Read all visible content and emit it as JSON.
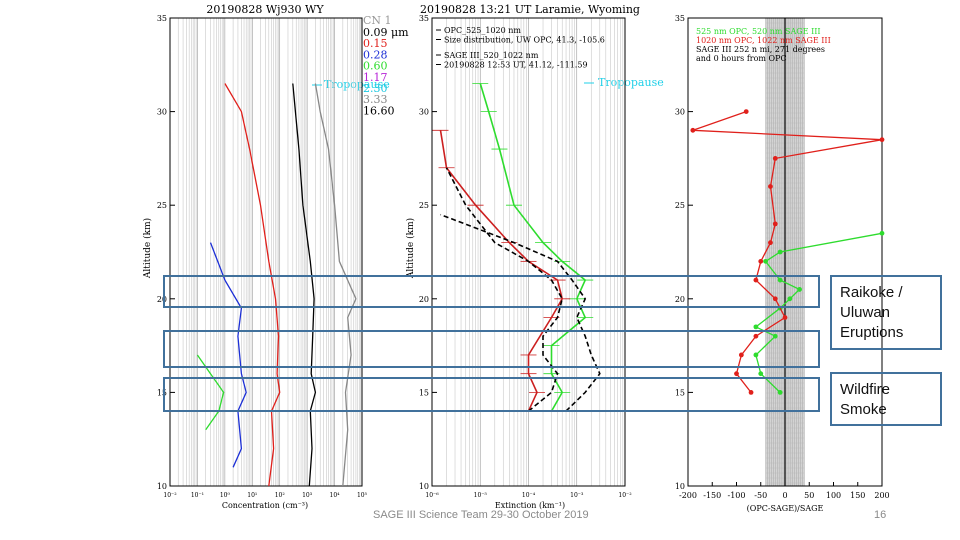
{
  "slide": {
    "footer": "SAGE III Science Team 29-30 October 2019",
    "page_number": "16",
    "box_color": "#41719c",
    "annotations": [
      {
        "text_lines": [
          "Raikoke /",
          "Uluwan",
          "Eruptions"
        ]
      },
      {
        "text_lines": [
          "Wildfire",
          "Smoke"
        ]
      }
    ]
  },
  "chart_data": [
    {
      "type": "line",
      "title": "20190828 Wj930 WY",
      "xlabel": "Concentration (cm⁻³)",
      "ylabel": "Altitude (km)",
      "xscale": "log",
      "xlim": [
        0.01,
        100000
      ],
      "ylim": [
        10,
        35
      ],
      "x_ticks": [
        "10⁻²",
        "10⁻¹",
        "10⁰",
        "10¹",
        "10²",
        "10³",
        "10⁴",
        "10⁵"
      ],
      "y_ticks": [
        10,
        15,
        20,
        25,
        30,
        35
      ],
      "grid": true,
      "legend_position": "top-right",
      "legend_header": "CN 1",
      "legend": [
        {
          "label": "0.09 μm",
          "color": "#000000"
        },
        {
          "label": "0.15",
          "color": "#e0201b"
        },
        {
          "label": "0.28",
          "color": "#1c2fd6"
        },
        {
          "label": "0.60",
          "color": "#2edc2e"
        },
        {
          "label": "1.17",
          "color": "#b624d6"
        },
        {
          "label": "2.30",
          "color": "#1cc8e0"
        },
        {
          "label": "3.33",
          "color": "#888888"
        },
        {
          "label": "16.60",
          "color": "#000000"
        }
      ],
      "tropopause_label": "Tropopause",
      "tropopause_color": "#22d0e8",
      "series": [
        {
          "name": "0.09 μm",
          "color": "#000000",
          "points": [
            [
              1200,
              10
            ],
            [
              1500,
              12
            ],
            [
              1300,
              14
            ],
            [
              2000,
              15
            ],
            [
              1400,
              16
            ],
            [
              1600,
              18
            ],
            [
              1800,
              20
            ],
            [
              1300,
              22
            ],
            [
              700,
              25
            ],
            [
              500,
              28
            ],
            [
              300,
              31.5
            ]
          ]
        },
        {
          "name": "0.15",
          "color": "#e0201b",
          "points": [
            [
              40,
              10
            ],
            [
              60,
              12
            ],
            [
              50,
              14
            ],
            [
              100,
              15
            ],
            [
              80,
              16
            ],
            [
              90,
              18
            ],
            [
              70,
              20
            ],
            [
              40,
              22
            ],
            [
              20,
              25
            ],
            [
              8,
              28
            ],
            [
              4,
              30
            ],
            [
              1,
              31.5
            ]
          ]
        },
        {
          "name": "0.28",
          "color": "#1c2fd6",
          "points": [
            [
              2,
              11
            ],
            [
              4,
              12
            ],
            [
              3,
              14
            ],
            [
              6,
              15
            ],
            [
              4,
              16
            ],
            [
              3,
              18
            ],
            [
              4,
              19.5
            ],
            [
              1,
              21
            ],
            [
              0.3,
              23
            ]
          ]
        },
        {
          "name": "0.60",
          "color": "#2edc2e",
          "points": [
            [
              0.2,
              13
            ],
            [
              0.6,
              14
            ],
            [
              0.9,
              15
            ],
            [
              0.3,
              16
            ],
            [
              0.1,
              17
            ]
          ]
        },
        {
          "name": "3.33",
          "color": "#888888",
          "points": [
            [
              20000,
              10
            ],
            [
              30000,
              13
            ],
            [
              25000,
              15
            ],
            [
              40000,
              17
            ],
            [
              30000,
              19
            ],
            [
              60000,
              20
            ],
            [
              15000,
              22
            ],
            [
              10000,
              25
            ],
            [
              6000,
              28
            ],
            [
              3000,
              30
            ],
            [
              2000,
              31.5
            ]
          ]
        }
      ]
    },
    {
      "type": "line",
      "title": "20190828 13:21 UT Laramie, Wyoming",
      "legend_lines": [
        "OPC_525_1020 nm",
        "Size distribution, UW OPC, 41.3, -105.6",
        "SAGE III_520_1022 nm",
        "20190828 12:53 UT, 41.12, -111.59"
      ],
      "tropopause_label": "Tropopause",
      "xlabel": "Extinction (km⁻¹)",
      "ylabel": "Altitude (km)",
      "xscale": "log",
      "xlim": [
        1e-06,
        0.01
      ],
      "ylim": [
        10,
        35
      ],
      "x_ticks": [
        "10⁻⁶",
        "10⁻⁵",
        "10⁻⁴",
        "10⁻³",
        "10⁻²"
      ],
      "y_ticks": [
        10,
        15,
        20,
        25,
        30,
        35
      ],
      "grid": true,
      "series": [
        {
          "name": "OPC 525 nm",
          "color": "#2edc2e",
          "points": [
            [
              0.0003,
              14
            ],
            [
              0.0005,
              15
            ],
            [
              0.0003,
              16
            ],
            [
              0.0003,
              17.5
            ],
            [
              0.0015,
              19
            ],
            [
              0.001,
              20
            ],
            [
              0.0015,
              21
            ],
            [
              0.0005,
              22
            ],
            [
              0.0002,
              23
            ],
            [
              5e-05,
              25
            ],
            [
              2.5e-05,
              28
            ],
            [
              1.5e-05,
              30
            ],
            [
              1e-05,
              31.5
            ]
          ]
        },
        {
          "name": "OPC 1020 nm",
          "color": "#cc2020",
          "points": [
            [
              0.0001,
              14
            ],
            [
              0.00015,
              15
            ],
            [
              0.0001,
              16
            ],
            [
              0.0001,
              17
            ],
            [
              0.0003,
              19
            ],
            [
              0.0005,
              20
            ],
            [
              0.0004,
              21
            ],
            [
              0.0001,
              22
            ],
            [
              4e-05,
              23
            ],
            [
              8e-06,
              25
            ],
            [
              2e-06,
              27
            ],
            [
              1.5e-06,
              29
            ]
          ]
        },
        {
          "name": "SAGE III 520 nm",
          "color": "#000000",
          "points": [
            [
              0.0006,
              14
            ],
            [
              0.0015,
              15
            ],
            [
              0.003,
              16
            ],
            [
              0.002,
              17
            ],
            [
              0.0015,
              18
            ],
            [
              0.001,
              19
            ],
            [
              0.0015,
              20
            ],
            [
              0.0008,
              21
            ],
            [
              0.0004,
              22
            ],
            [
              5e-05,
              23
            ],
            [
              1.5e-06,
              24.5
            ]
          ]
        },
        {
          "name": "SAGE III 1022 nm",
          "color": "#000000",
          "points": [
            [
              0.0001,
              14
            ],
            [
              0.0003,
              15
            ],
            [
              0.0004,
              16
            ],
            [
              0.0002,
              17
            ],
            [
              0.0002,
              18
            ],
            [
              0.0004,
              19
            ],
            [
              0.0005,
              20
            ],
            [
              0.0003,
              21
            ],
            [
              0.0001,
              22
            ],
            [
              2e-05,
              23
            ],
            [
              5e-06,
              25
            ],
            [
              2e-06,
              27
            ]
          ]
        }
      ]
    },
    {
      "type": "line",
      "legend_lines": [
        {
          "text": "525 nm OPC, 520 nm SAGE III",
          "color": "#2edc2e"
        },
        {
          "text": "1020 nm OPC, 1022 nm SAGE III",
          "color": "#e0201b"
        },
        {
          "text": "SAGE III 252 n mi, 271 degrees",
          "color": "#000000"
        },
        {
          "text": "and 0 hours from OPC",
          "color": "#000000"
        }
      ],
      "xlabel": "(OPC-SAGE)/SAGE",
      "xlim": [
        -200,
        200
      ],
      "ylim": [
        10,
        35
      ],
      "x_ticks": [
        -200,
        -150,
        -100,
        -50,
        0,
        50,
        100,
        150,
        200
      ],
      "y_ticks": [
        10,
        15,
        20,
        25,
        30,
        35
      ],
      "grid_band": [
        -40,
        40
      ],
      "series": [
        {
          "name": "525 nm",
          "color": "#2edc2e",
          "points": [
            [
              -10,
              15
            ],
            [
              -50,
              16
            ],
            [
              -60,
              17
            ],
            [
              -20,
              18
            ],
            [
              -60,
              18.5
            ],
            [
              -10,
              19.5
            ],
            [
              10,
              20
            ],
            [
              30,
              20.5
            ],
            [
              -10,
              21
            ],
            [
              -40,
              22
            ],
            [
              -10,
              22.5
            ],
            [
              200,
              23.5
            ]
          ]
        },
        {
          "name": "1020 nm",
          "color": "#e0201b",
          "points": [
            [
              -70,
              15
            ],
            [
              -100,
              16
            ],
            [
              -90,
              17
            ],
            [
              -60,
              18
            ],
            [
              0,
              19
            ],
            [
              -20,
              20
            ],
            [
              -60,
              21
            ],
            [
              -50,
              22
            ],
            [
              -30,
              23
            ],
            [
              -20,
              24
            ],
            [
              -30,
              26
            ],
            [
              -20,
              27.5
            ],
            [
              200,
              28.5
            ],
            [
              -190,
              29
            ],
            [
              -80,
              30
            ]
          ]
        }
      ]
    }
  ]
}
